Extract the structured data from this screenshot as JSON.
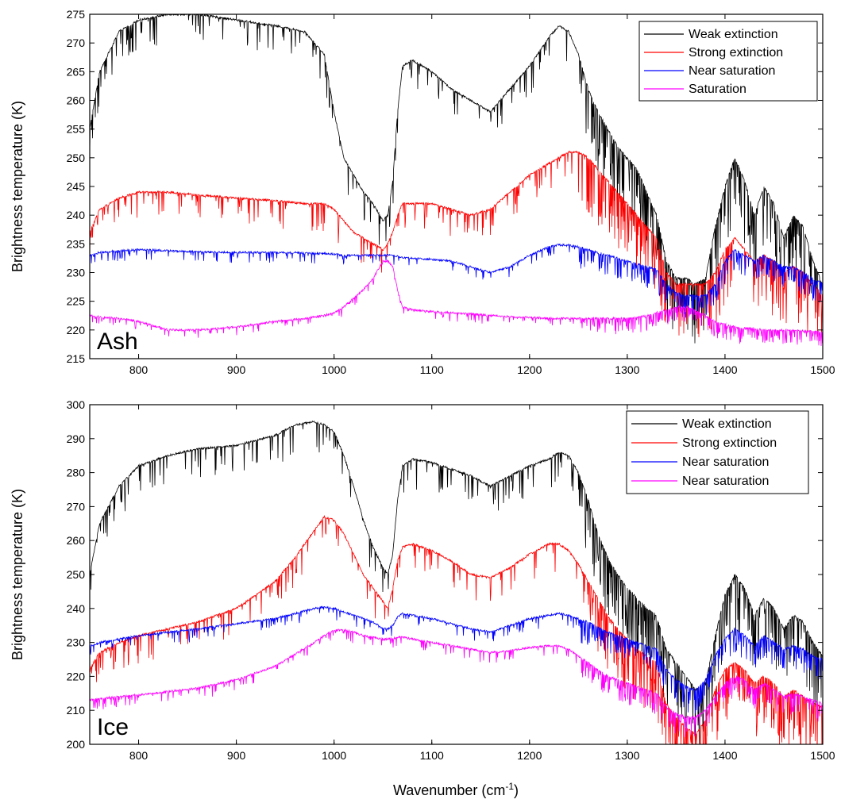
{
  "chart_data": [
    {
      "type": "line",
      "panel_label": "Ash",
      "ylabel": "Brightness temperature (K)",
      "xlim": [
        750,
        1500
      ],
      "ylim": [
        215,
        275
      ],
      "x_ticks": [
        800,
        900,
        1000,
        1100,
        1200,
        1300,
        1400,
        1500
      ],
      "y_ticks": [
        215,
        220,
        225,
        230,
        235,
        240,
        245,
        250,
        255,
        260,
        265,
        270,
        275
      ],
      "legend_position": "top-right",
      "series": [
        {
          "name": "Weak extinction",
          "color": "#000000",
          "x": [
            750,
            760,
            780,
            800,
            830,
            860,
            900,
            940,
            970,
            990,
            1000,
            1010,
            1020,
            1030,
            1040,
            1050,
            1055,
            1060,
            1065,
            1070,
            1080,
            1100,
            1120,
            1140,
            1160,
            1180,
            1200,
            1220,
            1230,
            1240,
            1250,
            1260,
            1270,
            1280,
            1290,
            1300,
            1310,
            1320,
            1330,
            1340,
            1350,
            1360,
            1370,
            1380,
            1390,
            1400,
            1410,
            1420,
            1430,
            1440,
            1450,
            1460,
            1470,
            1480,
            1490,
            1500
          ],
          "y": [
            255,
            265,
            272,
            274,
            275,
            275,
            274,
            273,
            272,
            268,
            258,
            250,
            247,
            244,
            242,
            239,
            240,
            246,
            258,
            266,
            267,
            265,
            262,
            260,
            258,
            262,
            266,
            271,
            273,
            272,
            268,
            262,
            258,
            255,
            252,
            250,
            248,
            244,
            240,
            232,
            229,
            229,
            228,
            229,
            238,
            245,
            250,
            246,
            240,
            245,
            242,
            236,
            240,
            238,
            232,
            228
          ]
        },
        {
          "name": "Strong extinction",
          "color": "#ff0000",
          "x": [
            750,
            760,
            780,
            800,
            830,
            860,
            900,
            940,
            970,
            990,
            1000,
            1010,
            1020,
            1030,
            1040,
            1050,
            1055,
            1060,
            1065,
            1070,
            1080,
            1100,
            1120,
            1140,
            1160,
            1180,
            1200,
            1220,
            1230,
            1240,
            1250,
            1260,
            1270,
            1280,
            1290,
            1300,
            1310,
            1320,
            1330,
            1340,
            1350,
            1360,
            1370,
            1380,
            1390,
            1400,
            1410,
            1420,
            1430,
            1440,
            1450,
            1460,
            1470,
            1480,
            1490,
            1500
          ],
          "y": [
            237,
            241,
            243,
            244,
            244,
            243.5,
            243,
            242.5,
            242,
            242,
            241,
            239,
            237,
            236,
            235,
            234,
            235,
            237,
            240,
            242,
            242,
            242,
            241,
            240,
            241,
            244,
            247,
            249,
            250,
            251,
            251,
            250,
            248,
            246,
            244,
            242,
            240,
            238,
            236,
            230,
            228,
            228,
            228,
            228,
            230,
            234,
            236,
            234,
            232,
            233,
            232,
            230,
            231,
            230,
            228,
            226
          ]
        },
        {
          "name": "Near saturation",
          "color": "#0000ff",
          "x": [
            750,
            760,
            780,
            800,
            830,
            860,
            900,
            940,
            970,
            990,
            1000,
            1010,
            1020,
            1030,
            1040,
            1050,
            1055,
            1060,
            1065,
            1070,
            1080,
            1100,
            1120,
            1140,
            1160,
            1180,
            1200,
            1220,
            1230,
            1240,
            1250,
            1260,
            1270,
            1280,
            1290,
            1300,
            1310,
            1320,
            1330,
            1340,
            1350,
            1360,
            1370,
            1380,
            1390,
            1400,
            1410,
            1420,
            1430,
            1440,
            1450,
            1460,
            1470,
            1480,
            1490,
            1500
          ],
          "y": [
            233,
            233.5,
            233.8,
            234,
            233.8,
            233.6,
            233.5,
            233.5,
            233.4,
            233.3,
            233.2,
            233,
            233,
            233,
            233,
            233,
            233,
            233,
            232.8,
            232.6,
            232.5,
            232.3,
            232,
            231,
            230,
            231,
            233,
            234.5,
            234.8,
            234.8,
            234.5,
            234,
            233.5,
            233,
            232.5,
            232,
            231.5,
            231,
            230.5,
            228,
            226.5,
            226,
            226,
            226,
            228,
            232,
            234,
            233,
            232,
            233,
            232,
            231,
            231,
            230,
            229,
            228
          ]
        },
        {
          "name": "Saturation",
          "color": "#ff00ff",
          "x": [
            750,
            760,
            780,
            800,
            830,
            860,
            900,
            940,
            970,
            990,
            1000,
            1010,
            1020,
            1030,
            1040,
            1050,
            1055,
            1060,
            1065,
            1070,
            1080,
            1100,
            1120,
            1140,
            1160,
            1180,
            1200,
            1220,
            1230,
            1240,
            1250,
            1260,
            1270,
            1280,
            1290,
            1300,
            1310,
            1320,
            1330,
            1340,
            1350,
            1360,
            1370,
            1380,
            1390,
            1400,
            1410,
            1420,
            1430,
            1440,
            1450,
            1460,
            1470,
            1480,
            1490,
            1500
          ],
          "y": [
            222.5,
            222.3,
            222,
            221.5,
            220,
            220,
            220.5,
            221.5,
            222,
            222.5,
            223,
            224,
            225.5,
            227,
            229,
            232,
            232,
            231,
            227,
            224,
            223.5,
            223.2,
            223,
            222.8,
            222.5,
            222.3,
            222.2,
            222,
            222,
            222,
            222,
            222,
            222,
            222,
            222,
            222,
            222.2,
            222.5,
            223,
            223.5,
            224,
            224,
            223.5,
            222.5,
            221.5,
            221,
            220.5,
            220.3,
            220.2,
            220,
            220,
            220,
            220,
            219.8,
            219.8,
            219.5
          ]
        }
      ]
    },
    {
      "type": "line",
      "panel_label": "Ice",
      "xlabel_text": "Wavenumber (cm",
      "xlabel_superscript": "-1",
      "xlabel_suffix": ")",
      "ylabel": "Brightness temperature (K)",
      "xlim": [
        750,
        1500
      ],
      "ylim": [
        200,
        300
      ],
      "x_ticks": [
        800,
        900,
        1000,
        1100,
        1200,
        1300,
        1400,
        1500
      ],
      "y_ticks": [
        200,
        210,
        220,
        230,
        240,
        250,
        260,
        270,
        280,
        290,
        300
      ],
      "legend_position": "top-right",
      "series": [
        {
          "name": "Weak extinction",
          "color": "#000000",
          "x": [
            750,
            760,
            780,
            800,
            830,
            860,
            900,
            940,
            960,
            980,
            990,
            1000,
            1010,
            1020,
            1030,
            1040,
            1050,
            1055,
            1060,
            1065,
            1070,
            1080,
            1100,
            1120,
            1140,
            1160,
            1180,
            1200,
            1220,
            1230,
            1240,
            1250,
            1260,
            1270,
            1280,
            1290,
            1300,
            1310,
            1320,
            1330,
            1340,
            1350,
            1360,
            1370,
            1380,
            1390,
            1400,
            1410,
            1420,
            1430,
            1440,
            1450,
            1460,
            1470,
            1480,
            1490,
            1500
          ],
          "y": [
            250,
            265,
            276,
            282,
            285,
            287,
            288,
            291,
            294,
            295,
            294,
            292,
            285,
            276,
            266,
            258,
            252,
            250,
            256,
            272,
            282,
            284,
            283,
            281,
            279,
            276,
            279,
            282,
            284,
            286,
            285,
            280,
            272,
            262,
            255,
            250,
            246,
            243,
            240,
            238,
            228,
            224,
            220,
            216,
            218,
            232,
            244,
            250,
            246,
            238,
            243,
            240,
            234,
            238,
            236,
            230,
            226
          ]
        },
        {
          "name": "Strong extinction",
          "color": "#ff0000",
          "x": [
            750,
            760,
            780,
            800,
            830,
            860,
            900,
            940,
            960,
            980,
            990,
            1000,
            1010,
            1020,
            1030,
            1040,
            1050,
            1055,
            1060,
            1065,
            1070,
            1080,
            1100,
            1120,
            1140,
            1160,
            1180,
            1200,
            1220,
            1230,
            1240,
            1250,
            1260,
            1270,
            1280,
            1290,
            1300,
            1310,
            1320,
            1330,
            1340,
            1350,
            1360,
            1370,
            1380,
            1390,
            1400,
            1410,
            1420,
            1430,
            1440,
            1450,
            1460,
            1470,
            1480,
            1490,
            1500
          ],
          "y": [
            222,
            227,
            230,
            232,
            234,
            236,
            240,
            248,
            255,
            263,
            267,
            266,
            262,
            256,
            250,
            246,
            242,
            240,
            246,
            254,
            258,
            259,
            257,
            254,
            250,
            249,
            252,
            256,
            259,
            259,
            257,
            253,
            248,
            243,
            238,
            234,
            231,
            228,
            226,
            224,
            212,
            208,
            205,
            203,
            207,
            216,
            222,
            224,
            222,
            218,
            220,
            218,
            214,
            216,
            214,
            212,
            211
          ]
        },
        {
          "name": "Near saturation",
          "color": "#0000ff",
          "x": [
            750,
            760,
            780,
            800,
            830,
            860,
            900,
            940,
            960,
            980,
            990,
            1000,
            1010,
            1020,
            1030,
            1040,
            1050,
            1055,
            1060,
            1065,
            1070,
            1080,
            1100,
            1120,
            1140,
            1160,
            1180,
            1200,
            1220,
            1230,
            1240,
            1250,
            1260,
            1270,
            1280,
            1290,
            1300,
            1310,
            1320,
            1330,
            1340,
            1350,
            1360,
            1370,
            1380,
            1390,
            1400,
            1410,
            1420,
            1430,
            1440,
            1450,
            1460,
            1470,
            1480,
            1490,
            1500
          ],
          "y": [
            229,
            230,
            231,
            232,
            233,
            234,
            235.5,
            237,
            238.5,
            240,
            240.5,
            240,
            239,
            238,
            237,
            236,
            234,
            234,
            235,
            237.5,
            238.5,
            238,
            237,
            235.5,
            234,
            233,
            235,
            237,
            238,
            238.5,
            238,
            237,
            236,
            234.5,
            233,
            232,
            231,
            230,
            229,
            228,
            222,
            219,
            217,
            216,
            219,
            226,
            231,
            234,
            232,
            229,
            232,
            230,
            228,
            229,
            228,
            226,
            225
          ]
        },
        {
          "name": "Near saturation",
          "color": "#ff00ff",
          "x": [
            750,
            760,
            780,
            800,
            830,
            860,
            900,
            940,
            960,
            980,
            990,
            1000,
            1010,
            1020,
            1030,
            1040,
            1050,
            1055,
            1060,
            1065,
            1070,
            1080,
            1100,
            1120,
            1140,
            1160,
            1180,
            1200,
            1220,
            1230,
            1240,
            1250,
            1260,
            1270,
            1280,
            1290,
            1300,
            1310,
            1320,
            1330,
            1340,
            1350,
            1360,
            1370,
            1380,
            1390,
            1400,
            1410,
            1420,
            1430,
            1440,
            1450,
            1460,
            1470,
            1480,
            1490,
            1500
          ],
          "y": [
            213,
            213.5,
            214,
            214.5,
            215.5,
            216.5,
            219,
            223,
            226.5,
            230,
            232,
            233.5,
            233.8,
            233,
            232,
            231.5,
            231,
            231,
            231.2,
            231.5,
            231.5,
            231,
            230,
            229,
            228,
            227,
            227.5,
            228.5,
            229,
            229,
            228,
            226,
            224,
            222,
            220,
            219,
            218,
            217,
            216,
            215,
            211,
            209,
            208,
            208,
            210,
            214,
            218,
            220,
            219,
            216,
            218,
            216,
            214,
            215,
            214,
            213,
            212
          ]
        }
      ]
    }
  ]
}
